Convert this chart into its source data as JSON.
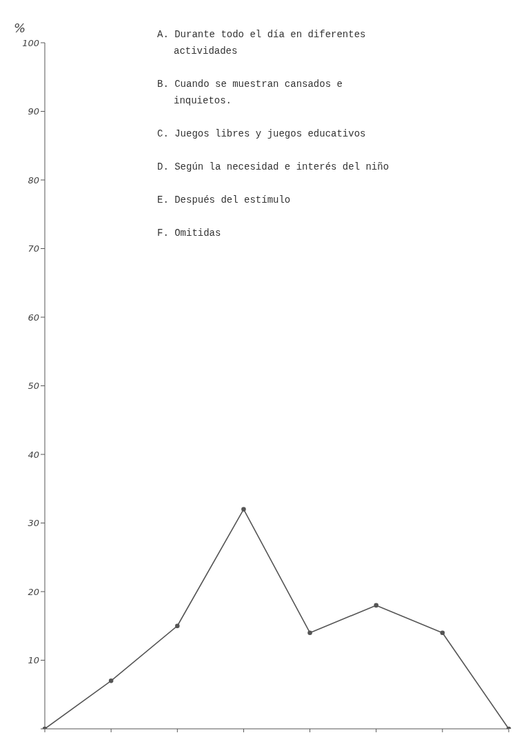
{
  "chart_data": {
    "type": "line",
    "ylabel": "%",
    "categories": [
      null,
      null,
      null,
      null,
      null,
      null,
      null,
      null
    ],
    "series": [
      {
        "color": "#555555",
        "values": [
          0,
          7,
          15,
          32,
          14,
          18,
          14,
          0
        ]
      }
    ],
    "ylim": [
      0,
      100
    ],
    "yticks": [
      {
        "value": 0,
        "label": null
      },
      10,
      20,
      30,
      40,
      50,
      60,
      70,
      80,
      90,
      100
    ],
    "annotations": [
      "A. Durante todo el día en diferentes actividades",
      "B. Cuando se muestran cansados e inquietos.",
      "C. Juegos libres y juegos educativos",
      "D. Según la necesidad e interés del niño",
      "E. Después del estímulo",
      "F. Omitidas"
    ],
    "marker": "circle",
    "line_style": "solid"
  }
}
